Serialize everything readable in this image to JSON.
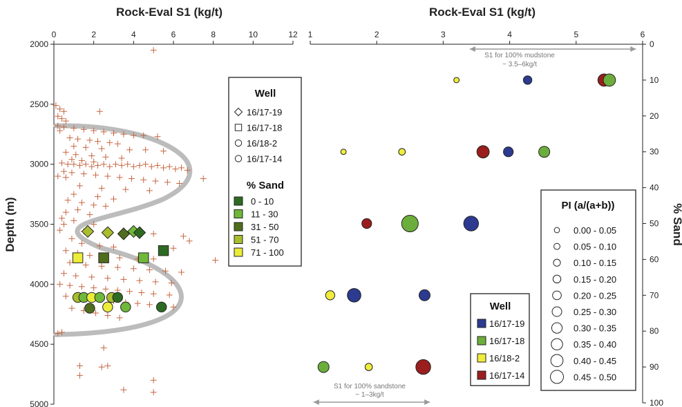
{
  "chart_data": [
    {
      "type": "scatter",
      "title": "Rock-Eval S1 (kg/t)",
      "ylabel": "Depth (m)",
      "xlim": [
        0,
        12
      ],
      "ylim": [
        2000,
        5000
      ],
      "x_ticks": [
        "0",
        "2",
        "4",
        "6",
        "8",
        "10",
        "12"
      ],
      "y_ticks": [
        "2000",
        "2500",
        "3000",
        "3500",
        "4000",
        "4500",
        "5000"
      ],
      "crosses": [
        [
          5.0,
          2050
        ],
        [
          0.1,
          2510
        ],
        [
          0.3,
          2540
        ],
        [
          0.5,
          2560
        ],
        [
          2.3,
          2560
        ],
        [
          0.2,
          2600
        ],
        [
          0.4,
          2620
        ],
        [
          0.6,
          2640
        ],
        [
          0.2,
          2680
        ],
        [
          0.5,
          2690
        ],
        [
          0.3,
          2720
        ],
        [
          1.0,
          2700
        ],
        [
          1.5,
          2710
        ],
        [
          2.0,
          2720
        ],
        [
          2.5,
          2730
        ],
        [
          3.0,
          2740
        ],
        [
          3.5,
          2750
        ],
        [
          4.0,
          2760
        ],
        [
          4.5,
          2760
        ],
        [
          5.2,
          2770
        ],
        [
          0.8,
          2780
        ],
        [
          1.2,
          2790
        ],
        [
          1.8,
          2800
        ],
        [
          2.2,
          2810
        ],
        [
          2.8,
          2820
        ],
        [
          3.2,
          2830
        ],
        [
          1.0,
          2850
        ],
        [
          1.6,
          2860
        ],
        [
          2.4,
          2870
        ],
        [
          3.8,
          2880
        ],
        [
          4.6,
          2880
        ],
        [
          5.5,
          2890
        ],
        [
          0.6,
          2900
        ],
        [
          1.1,
          2920
        ],
        [
          1.9,
          2930
        ],
        [
          2.6,
          2940
        ],
        [
          3.4,
          2950
        ],
        [
          0.9,
          2960
        ],
        [
          1.4,
          2970
        ],
        [
          2.0,
          2980
        ],
        [
          0.4,
          2990
        ],
        [
          0.7,
          3000
        ],
        [
          1.0,
          3000
        ],
        [
          1.3,
          3010
        ],
        [
          1.6,
          3000
        ],
        [
          1.9,
          3020
        ],
        [
          2.2,
          3010
        ],
        [
          2.5,
          3000
        ],
        [
          2.8,
          3020
        ],
        [
          3.1,
          3000
        ],
        [
          3.4,
          3010
        ],
        [
          3.7,
          3000
        ],
        [
          4.0,
          3020
        ],
        [
          4.3,
          3010
        ],
        [
          4.6,
          3000
        ],
        [
          4.9,
          3020
        ],
        [
          5.2,
          3010
        ],
        [
          5.5,
          3030
        ],
        [
          5.8,
          3020
        ],
        [
          6.1,
          3040
        ],
        [
          6.4,
          3030
        ],
        [
          6.7,
          3050
        ],
        [
          0.5,
          3060
        ],
        [
          0.9,
          3070
        ],
        [
          1.5,
          3080
        ],
        [
          2.1,
          3090
        ],
        [
          2.7,
          3100
        ],
        [
          3.3,
          3110
        ],
        [
          3.9,
          3120
        ],
        [
          4.5,
          3130
        ],
        [
          5.1,
          3140
        ],
        [
          5.7,
          3150
        ],
        [
          6.3,
          3160
        ],
        [
          0.2,
          3100
        ],
        [
          0.6,
          3110
        ],
        [
          7.5,
          3120
        ],
        [
          1.3,
          3180
        ],
        [
          2.4,
          3200
        ],
        [
          3.6,
          3210
        ],
        [
          4.8,
          3220
        ],
        [
          1.0,
          3250
        ],
        [
          2.2,
          3270
        ],
        [
          3.0,
          3290
        ],
        [
          0.7,
          3300
        ],
        [
          1.4,
          3320
        ],
        [
          2.0,
          3340
        ],
        [
          2.6,
          3350
        ],
        [
          1.2,
          3380
        ],
        [
          0.6,
          3400
        ],
        [
          1.8,
          3420
        ],
        [
          0.4,
          3450
        ],
        [
          1.0,
          3470
        ],
        [
          0.5,
          3500
        ],
        [
          2.0,
          3500
        ],
        [
          0.3,
          3550
        ],
        [
          1.5,
          3560
        ],
        [
          5.0,
          3580
        ],
        [
          6.5,
          3600
        ],
        [
          0.9,
          3620
        ],
        [
          6.8,
          3640
        ],
        [
          1.4,
          3660
        ],
        [
          2.3,
          3680
        ],
        [
          3.0,
          3690
        ],
        [
          6.0,
          3700
        ],
        [
          0.6,
          3720
        ],
        [
          1.2,
          3740
        ],
        [
          1.8,
          3760
        ],
        [
          2.6,
          3770
        ],
        [
          3.3,
          3780
        ],
        [
          4.2,
          3790
        ],
        [
          5.0,
          3790
        ],
        [
          8.1,
          3800
        ],
        [
          0.8,
          3820
        ],
        [
          1.6,
          3840
        ],
        [
          2.4,
          3850
        ],
        [
          3.2,
          3860
        ],
        [
          4.0,
          3870
        ],
        [
          4.8,
          3880
        ],
        [
          5.6,
          3890
        ],
        [
          6.4,
          3900
        ],
        [
          0.5,
          3910
        ],
        [
          1.1,
          3930
        ],
        [
          1.9,
          3940
        ],
        [
          2.7,
          3950
        ],
        [
          3.5,
          3960
        ],
        [
          4.3,
          3970
        ],
        [
          5.1,
          3980
        ],
        [
          5.9,
          3990
        ],
        [
          0.3,
          4000
        ],
        [
          0.8,
          4010
        ],
        [
          1.4,
          4020
        ],
        [
          2.0,
          4030
        ],
        [
          2.6,
          4040
        ],
        [
          3.2,
          4050
        ],
        [
          3.8,
          4060
        ],
        [
          4.4,
          4070
        ],
        [
          5.0,
          4080
        ],
        [
          5.8,
          4090
        ],
        [
          0.6,
          4100
        ],
        [
          1.2,
          4110
        ],
        [
          2.4,
          4130
        ],
        [
          3.0,
          4140
        ],
        [
          3.6,
          4150
        ],
        [
          4.2,
          4160
        ],
        [
          4.8,
          4170
        ],
        [
          5.4,
          4180
        ],
        [
          6.0,
          4190
        ],
        [
          0.9,
          4200
        ],
        [
          1.5,
          4220
        ],
        [
          2.1,
          4240
        ],
        [
          2.7,
          4260
        ],
        [
          3.3,
          4280
        ],
        [
          0.4,
          4400
        ],
        [
          0.2,
          4410
        ],
        [
          2.5,
          4530
        ],
        [
          1.3,
          4680
        ],
        [
          2.4,
          4690
        ],
        [
          2.7,
          4680
        ],
        [
          1.3,
          4760
        ],
        [
          5.0,
          4800
        ],
        [
          3.5,
          4880
        ],
        [
          5.0,
          4900
        ]
      ],
      "markers": [
        {
          "well": "16/17-19",
          "shape": "diamond",
          "sand": "51 - 70",
          "x": 1.7,
          "y": 3560
        },
        {
          "well": "16/17-19",
          "shape": "diamond",
          "sand": "51 - 70",
          "x": 2.7,
          "y": 3570
        },
        {
          "well": "16/17-19",
          "shape": "diamond",
          "sand": "31 - 50",
          "x": 3.5,
          "y": 3580
        },
        {
          "well": "16/17-19",
          "shape": "diamond",
          "sand": "11 - 30",
          "x": 4.0,
          "y": 3560
        },
        {
          "well": "16/17-19",
          "shape": "diamond",
          "sand": "0 - 10",
          "x": 4.3,
          "y": 3570
        },
        {
          "well": "16/17-18",
          "shape": "square",
          "sand": "0 - 10",
          "x": 5.5,
          "y": 3720
        },
        {
          "well": "16/17-18",
          "shape": "square",
          "sand": "71 - 100",
          "x": 1.2,
          "y": 3780
        },
        {
          "well": "16/17-18",
          "shape": "square",
          "sand": "31 - 50",
          "x": 2.5,
          "y": 3780
        },
        {
          "well": "16/17-18",
          "shape": "square",
          "sand": "11 - 30",
          "x": 4.5,
          "y": 3780
        },
        {
          "well": "16/18-2",
          "shape": "circle",
          "sand": "51 - 70",
          "x": 1.2,
          "y": 4110
        },
        {
          "well": "16/18-2",
          "shape": "circle",
          "sand": "11 - 30",
          "x": 1.5,
          "y": 4110
        },
        {
          "well": "16/18-2",
          "shape": "circle",
          "sand": "71 - 100",
          "x": 1.9,
          "y": 4110
        },
        {
          "well": "16/18-2",
          "shape": "circle",
          "sand": "11 - 30",
          "x": 2.3,
          "y": 4110
        },
        {
          "well": "16/18-2",
          "shape": "circle",
          "sand": "51 - 70",
          "x": 2.9,
          "y": 4110
        },
        {
          "well": "16/18-2",
          "shape": "circle",
          "sand": "0 - 10",
          "x": 3.2,
          "y": 4110
        },
        {
          "well": "16/17-14",
          "shape": "circle",
          "sand": "31 - 50",
          "x": 1.8,
          "y": 4200
        },
        {
          "well": "16/17-14",
          "shape": "circle",
          "sand": "71 - 100",
          "x": 2.7,
          "y": 4190
        },
        {
          "well": "16/17-14",
          "shape": "circle",
          "sand": "11 - 30",
          "x": 3.6,
          "y": 4190
        },
        {
          "well": "16/17-14",
          "shape": "circle",
          "sand": "0 - 10",
          "x": 5.4,
          "y": 4190
        }
      ],
      "legend": {
        "well_title": "Well",
        "wells": [
          {
            "label": "16/17-19",
            "shape": "diamond"
          },
          {
            "label": "16/17-18",
            "shape": "square"
          },
          {
            "label": "16/18-2",
            "shape": "circle"
          },
          {
            "label": "16/17-14",
            "shape": "circle"
          }
        ],
        "sand_title": "% Sand",
        "sand": [
          {
            "label": "0 - 10",
            "color": "#2e6b22"
          },
          {
            "label": "11 - 30",
            "color": "#6fb83a"
          },
          {
            "label": "31 - 50",
            "color": "#4e6e1d"
          },
          {
            "label": "51 - 70",
            "color": "#a9bd2e"
          },
          {
            "label": "71 - 100",
            "color": "#ecec3a"
          }
        ]
      }
    },
    {
      "type": "scatter",
      "title": "Rock-Eval S1 (kg/t)",
      "ylabel": "% Sand",
      "xlim": [
        1,
        6
      ],
      "ylim": [
        0,
        100
      ],
      "x_ticks": [
        "1",
        "2",
        "3",
        "4",
        "5",
        "6"
      ],
      "y_ticks": [
        "0",
        "10",
        "20",
        "30",
        "40",
        "50",
        "60",
        "70",
        "80",
        "90",
        "100"
      ],
      "points": [
        {
          "well": "16/18-2",
          "x": 3.2,
          "y": 10,
          "pi": 0.025
        },
        {
          "well": "16/17-19",
          "x": 4.27,
          "y": 10,
          "pi": 0.15
        },
        {
          "well": "16/17-14",
          "x": 5.42,
          "y": 10,
          "pi": 0.3
        },
        {
          "well": "16/17-18",
          "x": 5.5,
          "y": 10,
          "pi": 0.3
        },
        {
          "well": "16/18-2",
          "x": 1.5,
          "y": 30,
          "pi": 0.025
        },
        {
          "well": "16/18-2",
          "x": 2.38,
          "y": 30,
          "pi": 0.075
        },
        {
          "well": "16/17-14",
          "x": 3.6,
          "y": 30,
          "pi": 0.3
        },
        {
          "well": "16/17-19",
          "x": 3.98,
          "y": 30,
          "pi": 0.2
        },
        {
          "well": "16/17-18",
          "x": 4.52,
          "y": 30,
          "pi": 0.25
        },
        {
          "well": "16/17-14",
          "x": 1.85,
          "y": 50,
          "pi": 0.2
        },
        {
          "well": "16/17-18",
          "x": 2.5,
          "y": 50,
          "pi": 0.475
        },
        {
          "well": "16/17-19",
          "x": 3.42,
          "y": 50,
          "pi": 0.4
        },
        {
          "well": "16/18-2",
          "x": 1.3,
          "y": 70,
          "pi": 0.175
        },
        {
          "well": "16/17-19",
          "x": 1.66,
          "y": 70,
          "pi": 0.35
        },
        {
          "well": "16/17-19",
          "x": 2.72,
          "y": 70,
          "pi": 0.25
        },
        {
          "well": "16/17-18",
          "x": 1.2,
          "y": 90,
          "pi": 0.25
        },
        {
          "well": "16/18-2",
          "x": 1.88,
          "y": 90,
          "pi": 0.1
        },
        {
          "well": "16/17-14",
          "x": 2.7,
          "y": 90,
          "pi": 0.4
        }
      ],
      "annotations": {
        "mudstone_line1": "S1 for 100% mudstone",
        "mudstone_line2": "~ 3.5–6kg/t",
        "mudstone_range": [
          3.4,
          5.9
        ],
        "sandstone_line1": "S1 for 100% sandstone",
        "sandstone_line2": "~ 1–3kg/t",
        "sandstone_range": [
          1.05,
          2.8
        ]
      },
      "legend_well": {
        "title": "Well",
        "items": [
          {
            "label": "16/17-19",
            "color": "#2c3a8f"
          },
          {
            "label": "16/17-18",
            "color": "#6cae3b"
          },
          {
            "label": "16/18-2",
            "color": "#f0ec3c"
          },
          {
            "label": "16/17-14",
            "color": "#9a1e1e"
          }
        ]
      },
      "legend_pi": {
        "title": "PI (a/(a+b))",
        "items": [
          "0.00 - 0.05",
          "0.05 - 0.10",
          "0.10 - 0.15",
          "0.15 - 0.20",
          "0.20 - 0.25",
          "0.25 - 0.30",
          "0.30 - 0.35",
          "0.35 - 0.40",
          "0.40 - 0.45",
          "0.45 - 0.50"
        ]
      }
    }
  ],
  "colors": {
    "cross": "#c4653f",
    "trend": "#bcbcbc",
    "arrow": "#999999"
  }
}
